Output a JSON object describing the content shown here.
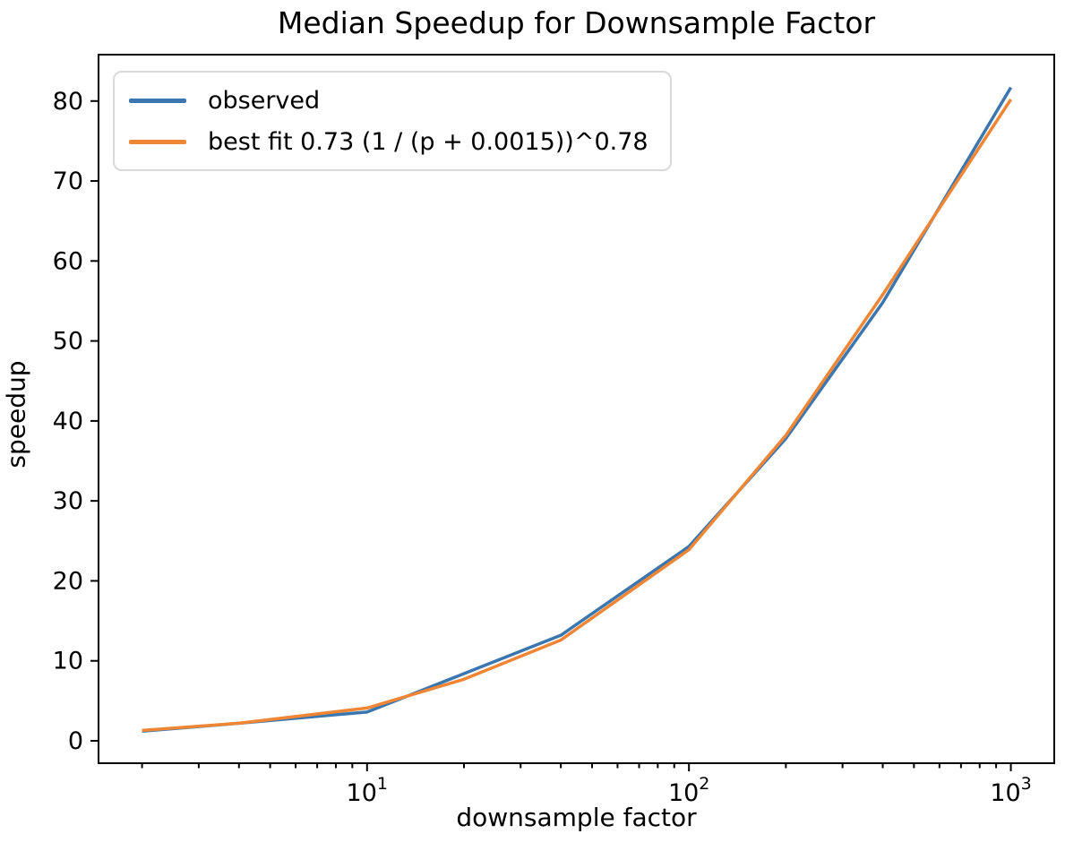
{
  "figure": {
    "title": "Median Speedup for Downsample Factor",
    "xlabel": "downsample factor",
    "ylabel": "speedup"
  },
  "legend": {
    "position": "upper left",
    "items": [
      {
        "label": "observed",
        "color": "#3b76af"
      },
      {
        "label": "best fit 0.73 (1 / (p + 0.0015))^0.78",
        "color": "#ef8636"
      }
    ]
  },
  "colors": {
    "axis": "#000000",
    "text": "#000000",
    "background": "#ffffff",
    "legend_border": "#d9d9d9"
  },
  "chart_data": {
    "type": "line",
    "title": "Median Speedup for Downsample Factor",
    "xlabel": "downsample factor",
    "ylabel": "speedup",
    "xscale": "log",
    "grid": false,
    "legend_position": "upper left",
    "x": [
      2,
      4,
      10,
      20,
      40,
      100,
      200,
      400,
      1000
    ],
    "series": [
      {
        "name": "observed",
        "color": "#3b76af",
        "values": [
          1.2,
          2.2,
          3.6,
          8.4,
          13.2,
          24.3,
          37.8,
          54.8,
          81.7
        ]
      },
      {
        "name": "best fit 0.73 (1 / (p + 0.0015))^0.78",
        "color": "#ef8636",
        "values": [
          1.3,
          2.2,
          4.1,
          7.7,
          12.6,
          23.9,
          38.2,
          55.8,
          80.2
        ]
      }
    ],
    "xlim": [
      1.465,
      1364
    ],
    "ylim": [
      -2.8,
      85.8
    ],
    "yticks": [
      0,
      10,
      20,
      30,
      40,
      50,
      60,
      70,
      80
    ],
    "xticks": [
      {
        "value": 10,
        "base": "10",
        "exponent": "1"
      },
      {
        "value": 100,
        "base": "10",
        "exponent": "2"
      },
      {
        "value": 1000,
        "base": "10",
        "exponent": "3"
      }
    ]
  }
}
